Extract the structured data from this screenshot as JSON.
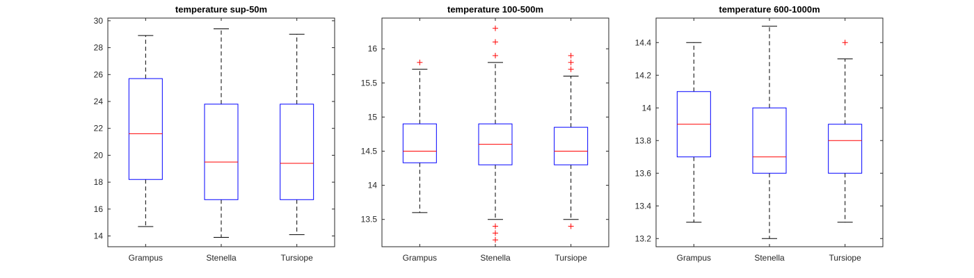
{
  "chart_data": [
    {
      "type": "box",
      "title": "temperature sup-50m",
      "categories": [
        "Grampus",
        "Stenella",
        "Tursiope"
      ],
      "ylim": [
        13.2,
        30.2
      ],
      "yticks": [
        14,
        16,
        18,
        20,
        22,
        24,
        26,
        28,
        30
      ],
      "yticklabels": [
        "14",
        "16",
        "18",
        "20",
        "22",
        "24",
        "26",
        "28",
        "30"
      ],
      "boxes": [
        {
          "name": "Grampus",
          "whisker_low": 14.7,
          "q1": 18.2,
          "median": 21.6,
          "q3": 25.7,
          "whisker_high": 28.9,
          "outliers": []
        },
        {
          "name": "Stenella",
          "whisker_low": 13.9,
          "q1": 16.7,
          "median": 19.5,
          "q3": 23.8,
          "whisker_high": 29.4,
          "outliers": []
        },
        {
          "name": "Tursiope",
          "whisker_low": 14.1,
          "q1": 16.7,
          "median": 19.4,
          "q3": 23.8,
          "whisker_high": 29.0,
          "outliers": []
        }
      ],
      "grid": false,
      "colors": {
        "box": "#0000ff",
        "median": "#ff0000",
        "whisker": "#000000",
        "outlier": "#ff0000"
      }
    },
    {
      "type": "box",
      "title": "temperature 100-500m",
      "categories": [
        "Grampus",
        "Stenella",
        "Tursiope"
      ],
      "ylim": [
        13.1,
        16.45
      ],
      "yticks": [
        13.5,
        14,
        14.5,
        15,
        15.5,
        16
      ],
      "yticklabels": [
        "13.5",
        "14",
        "14.5",
        "15",
        "15.5",
        "16"
      ],
      "boxes": [
        {
          "name": "Grampus",
          "whisker_low": 13.6,
          "q1": 14.33,
          "median": 14.5,
          "q3": 14.9,
          "whisker_high": 15.7,
          "outliers": [
            15.8
          ]
        },
        {
          "name": "Stenella",
          "whisker_low": 13.5,
          "q1": 14.3,
          "median": 14.6,
          "q3": 14.9,
          "whisker_high": 15.8,
          "outliers": [
            13.4,
            13.3,
            13.2,
            15.9,
            16.1,
            16.3
          ]
        },
        {
          "name": "Tursiope",
          "whisker_low": 13.5,
          "q1": 14.3,
          "median": 14.5,
          "q3": 14.85,
          "whisker_high": 15.6,
          "outliers": [
            13.4,
            15.7,
            15.8,
            15.9
          ]
        }
      ],
      "grid": false,
      "colors": {
        "box": "#0000ff",
        "median": "#ff0000",
        "whisker": "#000000",
        "outlier": "#ff0000"
      }
    },
    {
      "type": "box",
      "title": "temperature 600-1000m",
      "categories": [
        "Grampus",
        "Stenella",
        "Tursiope"
      ],
      "ylim": [
        13.15,
        14.55
      ],
      "yticks": [
        13.2,
        13.4,
        13.6,
        13.8,
        14,
        14.2,
        14.4
      ],
      "yticklabels": [
        "13.2",
        "13.4",
        "13.6",
        "13.8",
        "14",
        "14.2",
        "14.4"
      ],
      "boxes": [
        {
          "name": "Grampus",
          "whisker_low": 13.3,
          "q1": 13.7,
          "median": 13.9,
          "q3": 14.1,
          "whisker_high": 14.4,
          "outliers": []
        },
        {
          "name": "Stenella",
          "whisker_low": 13.2,
          "q1": 13.6,
          "median": 13.7,
          "q3": 14.0,
          "whisker_high": 14.5,
          "outliers": []
        },
        {
          "name": "Tursiope",
          "whisker_low": 13.3,
          "q1": 13.6,
          "median": 13.8,
          "q3": 13.9,
          "whisker_high": 14.3,
          "outliers": [
            14.4
          ]
        }
      ],
      "grid": false,
      "colors": {
        "box": "#0000ff",
        "median": "#ff0000",
        "whisker": "#000000",
        "outlier": "#ff0000"
      }
    }
  ]
}
